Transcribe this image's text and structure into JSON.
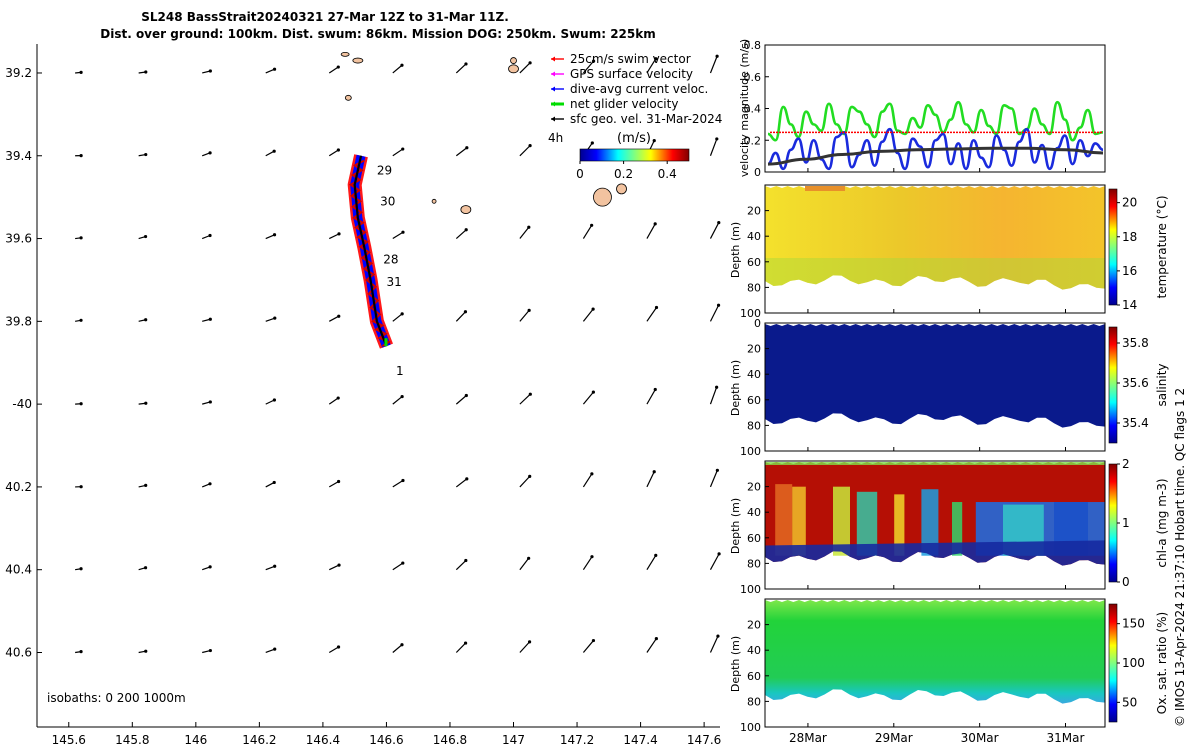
{
  "header": {
    "title": "SL248 BassStrait20240321 27-Mar 12Z to 31-Mar 11Z.",
    "subtitle": "Dist. over ground: 100km. Dist. swum: 86km. Mission DOG: 250km. Swum: 225km"
  },
  "credit": "© IMOS 13-Apr-2024 21:37:10 Hobart time. QC flags 1  2",
  "isobaths": "isobaths: 0   200  1000m",
  "colors": {
    "swim": "#ff0000",
    "gps": "#ff00ff",
    "dive_avg": "#0000ff",
    "net": "#00dd00",
    "sfc_geo": "#000000",
    "land": "#f2c3a0"
  },
  "chart_data": [
    {
      "id": "map",
      "type": "scatter",
      "title": "SL248 BassStrait20240321 27-Mar 12Z to 31-Mar 11Z.",
      "xlim": [
        145.5,
        147.65
      ],
      "ylim": [
        -40.78,
        -39.13
      ],
      "x_ticks": [
        145.6,
        145.8,
        146.0,
        146.2,
        146.4,
        146.6,
        146.8,
        147.0,
        147.2,
        147.4,
        147.6
      ],
      "x_tick_labels": [
        "145.6",
        "145.8",
        "146",
        "146.2",
        "146.4",
        "146.6",
        "146.8",
        "147",
        "147.2",
        "147.4",
        "147.6"
      ],
      "y_ticks": [
        -39.2,
        -39.4,
        -39.6,
        -39.8,
        -40.0,
        -40.2,
        -40.4,
        -40.6
      ],
      "y_tick_labels": [
        "39.2",
        "39.4",
        "39.6",
        "39.8",
        "-40",
        "40.2",
        "40.4",
        "40.6"
      ],
      "legend": [
        {
          "label": "25cm/s swim vector",
          "color": "#ff0000"
        },
        {
          "label": "GPS surface velocity",
          "color": "#ff00ff"
        },
        {
          "label": "dive-avg current veloc.",
          "color": "#0000ff"
        },
        {
          "label": "net glider velocity",
          "color": "#00dd00"
        },
        {
          "label": "sfc geo. vel. 31-Mar-2024",
          "color": "#000000"
        }
      ],
      "legend_note": "4h",
      "colorbar": {
        "label": "(m/s)",
        "ticks": [
          "0",
          "0.2",
          "0.4"
        ],
        "range": [
          0,
          0.5
        ]
      },
      "track": [
        [
          146.6,
          -39.86
        ],
        [
          146.57,
          -39.8
        ],
        [
          146.55,
          -39.7
        ],
        [
          146.53,
          -39.62
        ],
        [
          146.51,
          -39.55
        ],
        [
          146.5,
          -39.47
        ],
        [
          146.52,
          -39.4
        ]
      ],
      "day_labels": [
        {
          "text": "29",
          "lon": 146.57,
          "lat": -39.445
        },
        {
          "text": "30",
          "lon": 146.58,
          "lat": -39.52
        },
        {
          "text": "28",
          "lon": 146.59,
          "lat": -39.66
        },
        {
          "text": "31",
          "lon": 146.6,
          "lat": -39.715
        },
        {
          "text": "1",
          "lon": 146.63,
          "lat": -39.93
        }
      ],
      "vector_grid_lons": [
        145.62,
        145.82,
        146.02,
        146.22,
        146.42,
        146.62,
        146.82,
        147.02,
        147.22,
        147.42,
        147.62
      ],
      "vector_grid_lats": [
        -39.2,
        -39.4,
        -39.6,
        -39.8,
        -40.0,
        -40.2,
        -40.4,
        -40.6
      ]
    },
    {
      "id": "velocity",
      "type": "line",
      "ylabel": "velocity magnitude (m/s)",
      "ylim": [
        0,
        0.8
      ],
      "y_ticks": [
        "0",
        "0.2",
        "0.4",
        "0.6",
        "0.8"
      ],
      "x_range_days": [
        27.5,
        31.46
      ],
      "series": [
        {
          "name": "net glider velocity",
          "color": "#22dd22",
          "values": [
            0.24,
            0.2,
            0.41,
            0.3,
            0.22,
            0.38,
            0.3,
            0.26,
            0.43,
            0.3,
            0.24,
            0.41,
            0.38,
            0.3,
            0.22,
            0.38,
            0.43,
            0.26,
            0.24,
            0.34,
            0.28,
            0.42,
            0.36,
            0.25,
            0.33,
            0.44,
            0.3,
            0.25,
            0.39,
            0.29,
            0.24,
            0.42,
            0.4,
            0.24,
            0.27,
            0.4,
            0.3,
            0.24,
            0.44,
            0.33,
            0.2,
            0.28,
            0.39,
            0.24,
            0.25
          ]
        },
        {
          "name": "dive-avg current veloc.",
          "color": "#1a2bdd",
          "values": [
            0.05,
            0.12,
            0.02,
            0.14,
            0.21,
            0.06,
            0.2,
            0.08,
            0.02,
            0.22,
            0.25,
            0.03,
            0.11,
            0.2,
            0.04,
            0.19,
            0.27,
            0.12,
            0.02,
            0.21,
            0.16,
            0.03,
            0.2,
            0.24,
            0.05,
            0.18,
            0.02,
            0.2,
            0.09,
            0.03,
            0.23,
            0.14,
            0.04,
            0.19,
            0.27,
            0.06,
            0.17,
            0.02,
            0.15,
            0.23,
            0.05,
            0.2,
            0.1,
            0.18,
            0.14
          ]
        },
        {
          "name": "swim speed",
          "color": "#ff0000",
          "values": [
            0.25,
            0.25
          ]
        },
        {
          "name": "sfc geo. speed",
          "color": "#333333",
          "values": [
            0.05,
            0.08,
            0.11,
            0.13,
            0.14,
            0.145,
            0.15,
            0.15,
            0.14,
            0.12
          ]
        }
      ]
    },
    {
      "id": "temperature",
      "type": "heatmap",
      "ylabel": "Depth (m)",
      "cblabel": "temperature (°C)",
      "cb_ticks": [
        "20",
        "18",
        "16",
        "14"
      ],
      "cb_range": [
        14,
        20.8
      ],
      "depth_ticks": [
        "20",
        "40",
        "60",
        "80",
        "100"
      ]
    },
    {
      "id": "salinity",
      "type": "heatmap",
      "ylabel": "Depth (m)",
      "cblabel": "salinity",
      "cb_ticks": [
        "35.8",
        "35.6",
        "35.4"
      ],
      "cb_range": [
        35.3,
        35.88
      ],
      "depth_ticks": [
        "0",
        "20",
        "40",
        "60",
        "80",
        "100"
      ]
    },
    {
      "id": "chla",
      "type": "heatmap",
      "ylabel": "Depth (m)",
      "cblabel": "chl-a (mg m-3)",
      "cb_ticks": [
        "2",
        "1",
        "0"
      ],
      "cb_range": [
        0,
        2
      ],
      "depth_ticks": [
        "20",
        "40",
        "60",
        "80",
        "100"
      ]
    },
    {
      "id": "oxygen",
      "type": "heatmap",
      "ylabel": "Depth (m)",
      "cblabel": "Ox. sat. ratio (%)",
      "cb_ticks": [
        "150",
        "100",
        "50"
      ],
      "cb_range": [
        25,
        175
      ],
      "depth_ticks": [
        "20",
        "40",
        "60",
        "80",
        "100"
      ]
    }
  ],
  "time_axis": {
    "labels": [
      "28Mar",
      "29Mar",
      "30Mar",
      "31Mar"
    ],
    "days": [
      28,
      29,
      30,
      31
    ]
  }
}
